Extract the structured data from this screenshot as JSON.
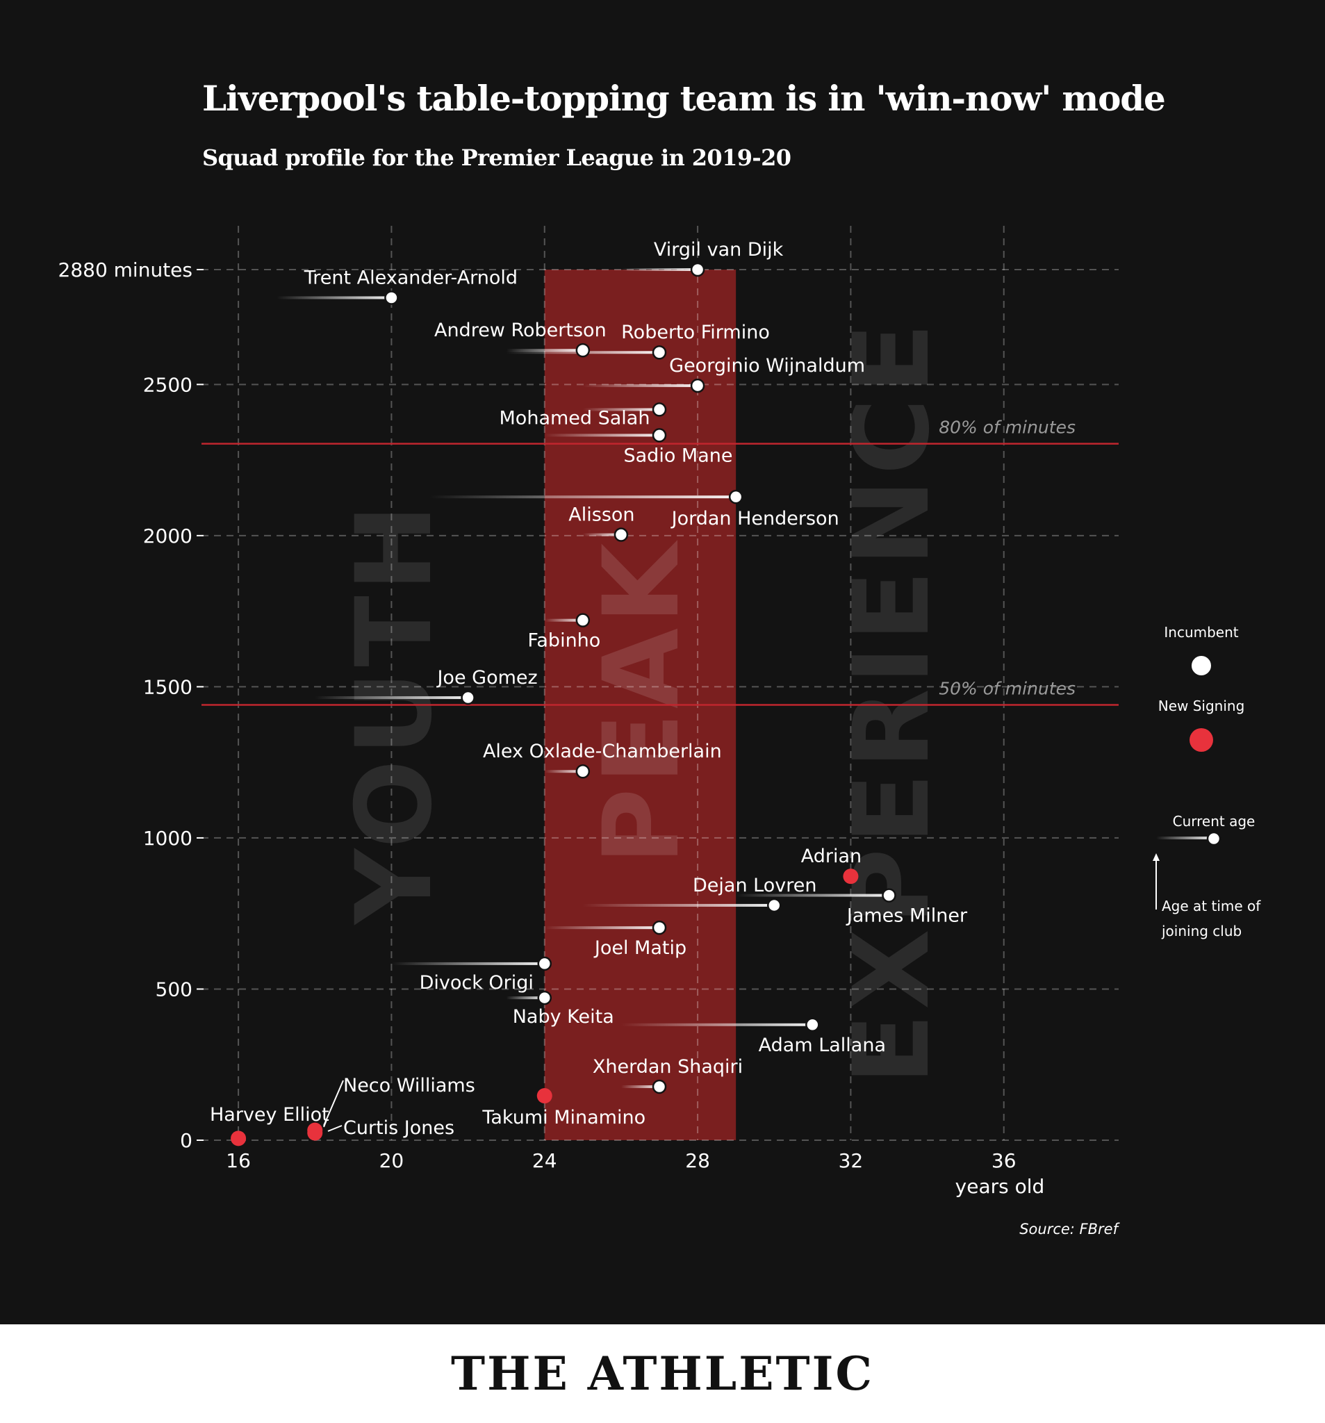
{
  "title": "Liverpool's table-topping team is in 'win-now' mode",
  "subtitle": "Squad profile for the Premier League in 2019-20",
  "source": "Source: FBref",
  "brand": "THE ATHLETIC",
  "colors": {
    "background": "#131313",
    "peak_band": "#7a1f1f",
    "new_signing": "#e8323c",
    "reference_line": "#c0262e",
    "incumbent": "#ffffff"
  },
  "chart_data": {
    "type": "scatter",
    "title": "Liverpool's table-topping team is in 'win-now' mode",
    "subtitle": "Squad profile for the Premier League in 2019-20",
    "xlabel": "years old",
    "ylabel": "",
    "xlim": [
      15,
      39
    ],
    "ylim": [
      0,
      2880
    ],
    "x_ticks": [
      16,
      20,
      24,
      28,
      32,
      36
    ],
    "x_tick_labels": [
      "16",
      "20",
      "24",
      "28",
      "32",
      "36"
    ],
    "y_ticks": [
      0,
      500,
      1000,
      1500,
      2000,
      2500,
      2880
    ],
    "y_tick_labels": [
      "0",
      "500",
      "1000",
      "1500",
      "2000",
      "2500",
      "2880 minutes"
    ],
    "grid": true,
    "peak_band": [
      24,
      29
    ],
    "zone_labels": [
      "YOUTH",
      "PEAK",
      "EXPERIENCE"
    ],
    "reference_lines": [
      {
        "label": "80% of minutes",
        "value": 2304
      },
      {
        "label": "50% of minutes",
        "value": 1440
      }
    ],
    "legend": {
      "placement": "right",
      "incumbent": "Incumbent",
      "new_signing": "New Signing",
      "current_age": "Current age",
      "join_age_line1": "Age at time of",
      "join_age_line2": "joining club"
    },
    "points": [
      {
        "name": "Virgil van Dijk",
        "age": 28,
        "joined_age": 26,
        "minutes": 2880,
        "type": "incumbent"
      },
      {
        "name": "Trent Alexander-Arnold",
        "age": 20,
        "joined_age": 17,
        "minutes": 2787,
        "type": "incumbent"
      },
      {
        "name": "Andrew Robertson",
        "age": 25,
        "joined_age": 23,
        "minutes": 2613,
        "type": "incumbent"
      },
      {
        "name": "Roberto Firmino",
        "age": 27,
        "joined_age": 23,
        "minutes": 2606,
        "type": "incumbent"
      },
      {
        "name": "Georginio Wijnaldum",
        "age": 28,
        "joined_age": 25,
        "minutes": 2496,
        "type": "incumbent"
      },
      {
        "name": "Mohamed Salah",
        "age": 27,
        "joined_age": 25,
        "minutes": 2417,
        "type": "incumbent"
      },
      {
        "name": "Sadio Mane",
        "age": 27,
        "joined_age": 24,
        "minutes": 2332,
        "type": "incumbent"
      },
      {
        "name": "Jordan Henderson",
        "age": 29,
        "joined_age": 21,
        "minutes": 2128,
        "type": "incumbent"
      },
      {
        "name": "Alisson",
        "age": 26,
        "joined_age": 25,
        "minutes": 2003,
        "type": "incumbent"
      },
      {
        "name": "Fabinho",
        "age": 25,
        "joined_age": 24,
        "minutes": 1720,
        "type": "incumbent"
      },
      {
        "name": "Joe Gomez",
        "age": 22,
        "joined_age": 18,
        "minutes": 1464,
        "type": "incumbent"
      },
      {
        "name": "Alex Oxlade-Chamberlain",
        "age": 25,
        "joined_age": 24,
        "minutes": 1220,
        "type": "incumbent"
      },
      {
        "name": "Adrian",
        "age": 32,
        "joined_age": 32,
        "minutes": 873,
        "type": "new_signing"
      },
      {
        "name": "James Milner",
        "age": 33,
        "joined_age": 29,
        "minutes": 810,
        "type": "incumbent"
      },
      {
        "name": "Dejan Lovren",
        "age": 30,
        "joined_age": 25,
        "minutes": 777,
        "type": "incumbent"
      },
      {
        "name": "Joel Matip",
        "age": 27,
        "joined_age": 24,
        "minutes": 703,
        "type": "incumbent"
      },
      {
        "name": "Divock Origi",
        "age": 24,
        "joined_age": 20,
        "minutes": 584,
        "type": "incumbent"
      },
      {
        "name": "Naby Keita",
        "age": 24,
        "joined_age": 23,
        "minutes": 471,
        "type": "incumbent"
      },
      {
        "name": "Adam Lallana",
        "age": 31,
        "joined_age": 26,
        "minutes": 382,
        "type": "incumbent"
      },
      {
        "name": "Xherdan Shaqiri",
        "age": 27,
        "joined_age": 26,
        "minutes": 177,
        "type": "incumbent"
      },
      {
        "name": "Takumi Minamino",
        "age": 24,
        "joined_age": 24,
        "minutes": 147,
        "type": "new_signing"
      },
      {
        "name": "Neco Williams",
        "age": 18,
        "joined_age": 18,
        "minutes": 33,
        "type": "new_signing"
      },
      {
        "name": "Curtis Jones",
        "age": 18,
        "joined_age": 18,
        "minutes": 24,
        "type": "new_signing"
      },
      {
        "name": "Harvey Elliot",
        "age": 16,
        "joined_age": 16,
        "minutes": 6,
        "type": "new_signing"
      }
    ]
  }
}
